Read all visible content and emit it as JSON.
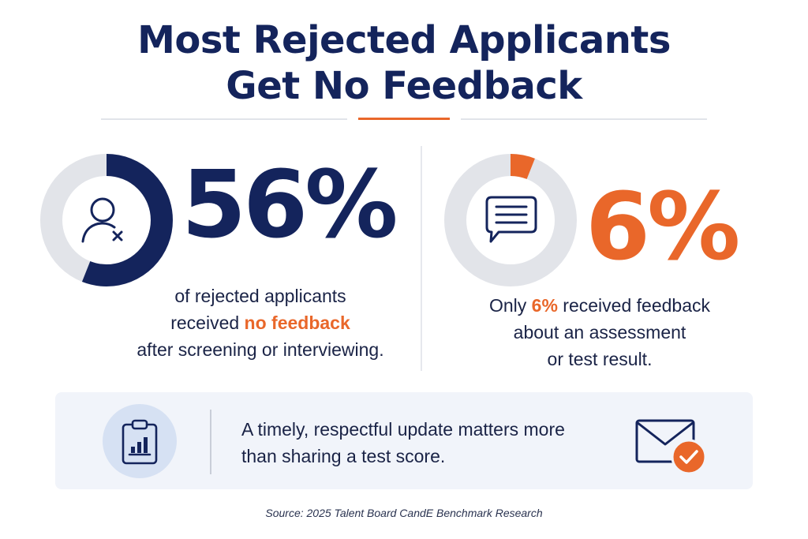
{
  "title": {
    "line1": "Most Rejected Applicants",
    "line2": "Get No Feedback"
  },
  "stat_left": {
    "value": "56%",
    "percent": 56,
    "icon": "user-x-icon",
    "color": "#14245c",
    "caption": {
      "line1": "of rejected applicants",
      "line2_pre": "received ",
      "line2_highlight": "no feedback",
      "line3": "after screening or interviewing."
    }
  },
  "stat_right": {
    "value": "6%",
    "percent": 6,
    "icon": "chat-bubble-icon",
    "color": "#e9672a",
    "caption": {
      "line1_pre": "Only ",
      "line1_highlight": "6%",
      "line1_post": " received feedback",
      "line2": "about an assessment",
      "line3": "or test result."
    }
  },
  "banner": {
    "icon_left": "clipboard-chart-icon",
    "message_line1": "A timely, respectful update matters more",
    "message_line2": "than sharing a test score.",
    "icon_right": "envelope-check-icon"
  },
  "source": "Source: 2025 Talent Board CandE Benchmark Research",
  "colors": {
    "navy": "#14245c",
    "orange": "#e9672a",
    "ring_track": "#e2e4e9",
    "banner_bg": "#f1f4fa"
  }
}
